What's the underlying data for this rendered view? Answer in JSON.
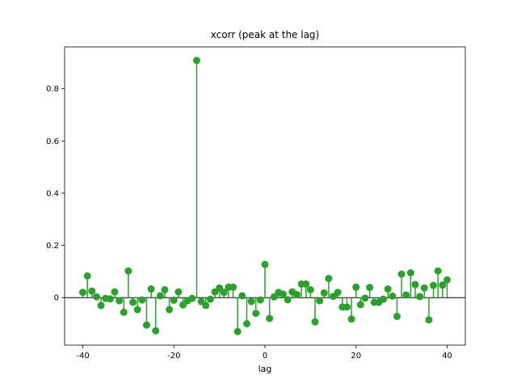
{
  "chart_data": {
    "type": "stem",
    "title": "xcorr (peak at the lag)",
    "x_label": "lag",
    "color": "#2ca02c",
    "x": [
      -40,
      -39,
      -38,
      -37,
      -36,
      -35,
      -34,
      -33,
      -32,
      -31,
      -30,
      -29,
      -28,
      -27,
      -26,
      -25,
      -24,
      -23,
      -22,
      -21,
      -20,
      -19,
      -18,
      -17,
      -16,
      -15,
      -14,
      -13,
      -12,
      -11,
      -10,
      -9,
      -8,
      -7,
      -6,
      -5,
      -4,
      -3,
      -2,
      -1,
      0,
      1,
      2,
      3,
      4,
      5,
      6,
      7,
      8,
      9,
      10,
      11,
      12,
      13,
      14,
      15,
      16,
      17,
      18,
      19,
      20,
      21,
      22,
      23,
      24,
      25,
      26,
      27,
      28,
      29,
      30,
      31,
      32,
      33,
      34,
      35,
      36,
      37,
      38,
      39,
      40
    ],
    "values": [
      0.02,
      0.083,
      0.025,
      0.003,
      -0.03,
      -0.003,
      -0.005,
      0.022,
      -0.012,
      -0.056,
      0.102,
      -0.018,
      -0.046,
      -0.009,
      -0.105,
      0.033,
      -0.127,
      0.007,
      0.03,
      -0.046,
      -0.01,
      0.022,
      -0.028,
      -0.012,
      -0.003,
      0.908,
      -0.015,
      -0.03,
      -0.006,
      0.022,
      0.037,
      0.02,
      0.04,
      0.04,
      -0.13,
      0.007,
      -0.1,
      -0.015,
      -0.06,
      -0.009,
      0.127,
      -0.08,
      0.003,
      0.02,
      0.013,
      -0.008,
      0.022,
      0.012,
      0.052,
      0.052,
      0.03,
      -0.093,
      -0.012,
      0.018,
      0.073,
      0.005,
      0.02,
      -0.036,
      -0.036,
      -0.082,
      0.04,
      -0.027,
      -0.002,
      0.039,
      -0.018,
      -0.018,
      -0.006,
      0.033,
      0.006,
      -0.072,
      0.09,
      0.01,
      0.095,
      0.05,
      0.004,
      0.037,
      -0.085,
      0.047,
      0.102,
      0.048,
      0.068
    ],
    "xlim": [
      -44,
      44
    ],
    "xticks": [
      -40,
      -20,
      0,
      20,
      40
    ],
    "ylim": [
      -0.182,
      0.96
    ],
    "yticks": [
      0,
      0.2,
      0.4,
      0.6,
      0.8
    ]
  }
}
